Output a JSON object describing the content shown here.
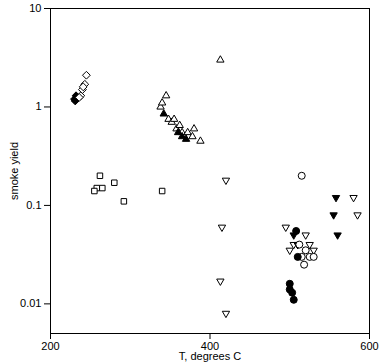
{
  "chart_data": {
    "type": "scatter",
    "x_label": "T, degrees C",
    "y_label": "smoke yield",
    "xlim": [
      200,
      600
    ],
    "xticks": [
      200,
      400,
      600
    ],
    "ylim": [
      0.005,
      10
    ],
    "yticks": [
      0.01,
      0.1,
      1,
      10
    ],
    "log": "y",
    "series": [
      {
        "marker": "diamond",
        "color": "#000000",
        "x": [
          230,
          232,
          233,
          231
        ],
        "values": [
          1.2,
          1.3,
          1.25,
          1.15
        ]
      },
      {
        "marker": "diamond-open",
        "color": "#000000",
        "x": [
          238,
          240,
          243,
          245,
          241,
          236
        ],
        "values": [
          1.3,
          1.5,
          1.7,
          2.1,
          1.6,
          1.25
        ]
      },
      {
        "marker": "square-open",
        "color": "#000000",
        "x": [
          258,
          262,
          265,
          280,
          292,
          340,
          255
        ],
        "values": [
          0.15,
          0.2,
          0.15,
          0.17,
          0.11,
          0.14,
          0.14
        ]
      },
      {
        "marker": "triangle-up-open",
        "color": "#000000",
        "x": [
          338,
          340,
          345,
          348,
          352,
          355,
          358,
          362,
          365,
          372,
          378,
          380,
          388,
          413
        ],
        "values": [
          1.0,
          1.1,
          1.3,
          0.75,
          0.7,
          0.75,
          0.6,
          0.65,
          0.55,
          0.55,
          0.5,
          0.6,
          0.45,
          3.0
        ]
      },
      {
        "marker": "triangle-up",
        "color": "#000000",
        "x": [
          342,
          360,
          365,
          370
        ],
        "values": [
          0.85,
          0.55,
          0.5,
          0.47
        ]
      },
      {
        "marker": "triangle-down-open",
        "color": "#000000",
        "x": [
          420,
          415,
          413,
          420,
          495,
          500,
          505,
          510,
          520,
          525,
          530,
          580,
          585
        ],
        "values": [
          0.18,
          0.06,
          0.017,
          0.008,
          0.06,
          0.035,
          0.04,
          0.04,
          0.05,
          0.04,
          0.035,
          0.12,
          0.08
        ]
      },
      {
        "marker": "triangle-down",
        "color": "#000000",
        "x": [
          505,
          510,
          555,
          558,
          560
        ],
        "values": [
          0.05,
          0.04,
          0.08,
          0.12,
          0.05
        ]
      },
      {
        "marker": "circle-open",
        "color": "#000000",
        "x": [
          515,
          512,
          515,
          518,
          525,
          530,
          520
        ],
        "values": [
          0.2,
          0.04,
          0.03,
          0.025,
          0.03,
          0.03,
          0.035
        ]
      },
      {
        "marker": "circle",
        "color": "#000000",
        "x": [
          500,
          500,
          503,
          505,
          510,
          508
        ],
        "values": [
          0.016,
          0.014,
          0.013,
          0.011,
          0.03,
          0.055
        ]
      }
    ]
  }
}
